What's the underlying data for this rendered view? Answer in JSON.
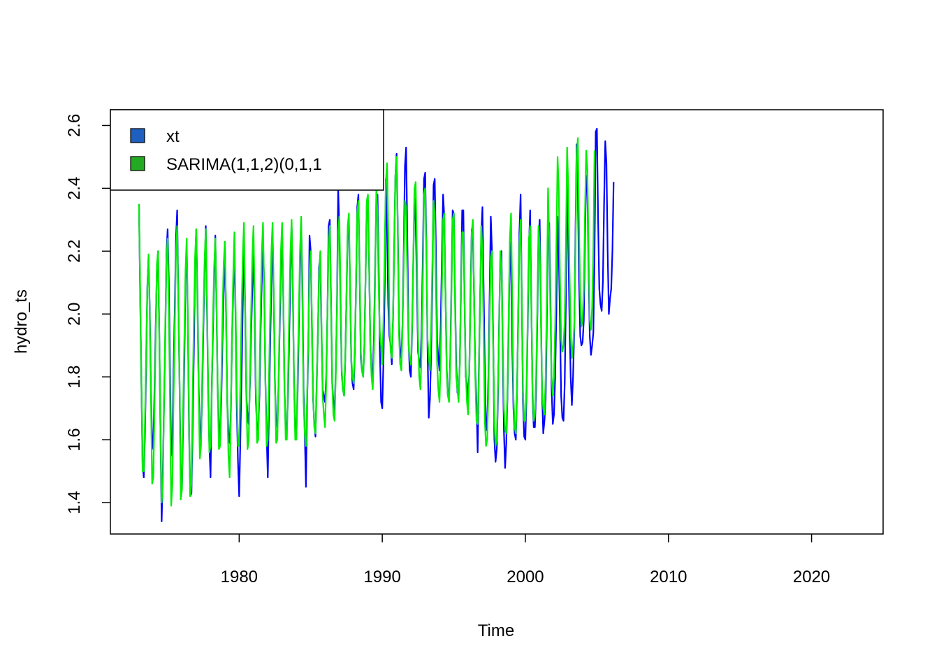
{
  "chart_data": {
    "type": "line",
    "title": "",
    "xlabel": "Time",
    "ylabel": "hydro_ts",
    "xlim": [
      1971,
      2025
    ],
    "ylim": [
      1.3,
      2.65
    ],
    "xticks": [
      1980,
      1990,
      2000,
      2010,
      2020
    ],
    "xtick_labels": [
      "1980",
      "1990",
      "2000",
      "2010",
      "2020"
    ],
    "yticks": [
      1.4,
      1.6,
      1.8,
      2.0,
      2.2,
      2.4,
      2.6
    ],
    "ytick_labels": [
      "1.4",
      "1.6",
      "1.8",
      "2.0",
      "2.2",
      "2.4",
      "2.6"
    ],
    "x_start": 1973.0,
    "frequency": 12,
    "legend": {
      "position": "top-left",
      "entries": [
        {
          "label": "xt",
          "color": "#1f5fbf"
        },
        {
          "label": "SARIMA(1,1,2)(0,1,1",
          "color": "#22aa22"
        }
      ]
    },
    "series": [
      {
        "name": "xt",
        "color": "#0000ff",
        "values": [
          2.35,
          2.05,
          1.78,
          1.52,
          1.48,
          1.62,
          1.84,
          2.09,
          2.18,
          2.02,
          1.76,
          1.6,
          1.57,
          1.76,
          1.96,
          2.14,
          2.2,
          1.94,
          1.62,
          1.34,
          1.5,
          1.72,
          1.92,
          2.19,
          2.27,
          2.1,
          1.82,
          1.55,
          1.58,
          1.83,
          2.02,
          2.24,
          2.33,
          2.05,
          1.78,
          1.48,
          1.44,
          1.64,
          1.85,
          2.11,
          2.22,
          1.96,
          1.62,
          1.42,
          1.43,
          1.64,
          1.88,
          2.15,
          2.27,
          2.06,
          1.78,
          1.63,
          1.6,
          1.75,
          1.96,
          2.14,
          2.28,
          2.02,
          1.75,
          1.58,
          1.48,
          1.76,
          1.94,
          2.11,
          2.25,
          2.02,
          1.75,
          1.65,
          1.6,
          1.72,
          1.92,
          2.06,
          2.23,
          2.0,
          1.72,
          1.62,
          1.59,
          1.68,
          1.92,
          2.07,
          2.22,
          1.98,
          1.7,
          1.53,
          1.42,
          1.6,
          1.8,
          2.02,
          2.23,
          2.02,
          1.74,
          1.68,
          1.65,
          1.77,
          1.93,
          2.08,
          2.21,
          1.99,
          1.72,
          1.64,
          1.63,
          1.74,
          1.95,
          2.11,
          2.24,
          2.08,
          1.79,
          1.62,
          1.48,
          1.7,
          1.9,
          2.1,
          2.26,
          2.05,
          1.78,
          1.65,
          1.64,
          1.77,
          1.96,
          2.14,
          2.27,
          2.05,
          1.76,
          1.64,
          1.63,
          1.75,
          1.94,
          2.13,
          2.28,
          2.08,
          1.78,
          1.64,
          1.62,
          1.75,
          1.95,
          2.14,
          2.29,
          2.1,
          1.76,
          1.62,
          1.45,
          1.72,
          1.9,
          2.25,
          2.2,
          1.96,
          1.73,
          1.65,
          1.61,
          1.78,
          1.93,
          2.15,
          2.18,
          1.95,
          1.76,
          1.74,
          1.72,
          1.8,
          2.0,
          2.28,
          2.3,
          2.05,
          1.78,
          1.72,
          1.69,
          1.82,
          2.02,
          2.4,
          2.27,
          2.04,
          1.81,
          1.76,
          1.74,
          1.86,
          2.06,
          2.26,
          2.29,
          2.09,
          1.85,
          1.78,
          1.76,
          1.88,
          2.09,
          2.34,
          2.38,
          2.13,
          1.86,
          1.82,
          1.8,
          1.9,
          2.12,
          2.35,
          2.36,
          2.15,
          1.9,
          1.82,
          1.79,
          1.93,
          2.14,
          2.36,
          2.38,
          2.15,
          1.88,
          1.72,
          1.7,
          1.85,
          2.07,
          2.43,
          2.27,
          2.03,
          1.93,
          1.9,
          1.84,
          1.98,
          2.22,
          2.44,
          2.51,
          2.28,
          1.98,
          1.88,
          1.86,
          1.97,
          2.2,
          2.47,
          2.53,
          2.25,
          1.92,
          1.82,
          1.8,
          1.95,
          2.16,
          2.37,
          2.3,
          2.1,
          1.88,
          1.85,
          1.83,
          1.95,
          2.18,
          2.43,
          2.45,
          2.21,
          1.88,
          1.67,
          1.73,
          1.88,
          2.1,
          2.41,
          2.43,
          2.2,
          1.92,
          1.86,
          1.82,
          1.96,
          2.18,
          2.38,
          2.31,
          2.07,
          1.83,
          1.74,
          1.74,
          1.86,
          2.09,
          2.33,
          2.32,
          2.07,
          1.84,
          1.75,
          1.74,
          1.84,
          2.08,
          2.33,
          2.33,
          2.04,
          1.8,
          1.78,
          1.72,
          1.82,
          2.07,
          2.27,
          2.26,
          2.05,
          1.82,
          1.72,
          1.56,
          1.82,
          2.04,
          2.25,
          2.34,
          2.08,
          1.82,
          1.63,
          1.65,
          1.8,
          2.05,
          2.31,
          2.2,
          1.93,
          1.6,
          1.53,
          1.57,
          1.73,
          1.98,
          2.18,
          2.2,
          1.88,
          1.63,
          1.51,
          1.59,
          1.74,
          1.96,
          2.23,
          2.14,
          1.9,
          1.7,
          1.62,
          1.6,
          1.75,
          2.0,
          2.26,
          2.38,
          2.05,
          1.72,
          1.61,
          1.6,
          1.75,
          1.97,
          2.22,
          2.33,
          2.04,
          1.74,
          1.64,
          1.64,
          1.76,
          1.98,
          2.24,
          2.3,
          2.02,
          1.75,
          1.62,
          1.66,
          1.73,
          1.98,
          2.25,
          2.29,
          2.06,
          1.76,
          1.65,
          1.68,
          1.8,
          2.01,
          2.31,
          2.2,
          1.98,
          1.74,
          1.67,
          1.66,
          1.78,
          2.05,
          2.46,
          2.22,
          1.98,
          1.8,
          1.71,
          1.8,
          1.95,
          2.25,
          2.54,
          2.39,
          2.12,
          1.93,
          1.9,
          1.91,
          1.98,
          2.24,
          2.44,
          2.4,
          2.15,
          1.93,
          1.87,
          1.9,
          1.94,
          2.19,
          2.58,
          2.59,
          2.3,
          2.08,
          2.03,
          2.01,
          2.1,
          2.35,
          2.55,
          2.48,
          2.2,
          2.0,
          2.05,
          2.08,
          2.2,
          2.42
        ]
      },
      {
        "name": "SARIMA(1,1,2)(0,1,1",
        "color": "#00ee00",
        "values": [
          2.35,
          2.07,
          1.8,
          1.5,
          1.5,
          1.66,
          1.88,
          2.08,
          2.19,
          2.0,
          1.74,
          1.46,
          1.48,
          1.7,
          1.93,
          2.16,
          2.2,
          1.94,
          1.62,
          1.4,
          1.46,
          1.72,
          1.96,
          2.17,
          2.24,
          2.02,
          1.72,
          1.39,
          1.46,
          1.74,
          1.96,
          2.19,
          2.28,
          2.04,
          1.78,
          1.41,
          1.44,
          1.7,
          1.92,
          2.14,
          2.24,
          1.97,
          1.65,
          1.42,
          1.46,
          1.74,
          1.98,
          2.18,
          2.27,
          2.02,
          1.76,
          1.54,
          1.58,
          1.8,
          2.0,
          2.17,
          2.27,
          2.04,
          1.78,
          1.56,
          1.58,
          1.76,
          1.98,
          2.15,
          2.24,
          2.03,
          1.76,
          1.57,
          1.58,
          1.78,
          1.99,
          2.16,
          2.23,
          2.0,
          1.72,
          1.55,
          1.48,
          1.68,
          1.93,
          2.12,
          2.26,
          2.02,
          1.76,
          1.58,
          1.58,
          1.78,
          2.0,
          2.18,
          2.29,
          2.04,
          1.74,
          1.57,
          1.6,
          1.79,
          2.0,
          2.18,
          2.28,
          2.04,
          1.76,
          1.59,
          1.6,
          1.8,
          2.02,
          2.2,
          2.29,
          2.06,
          1.78,
          1.58,
          1.6,
          1.8,
          2.0,
          2.2,
          2.29,
          2.06,
          1.78,
          1.59,
          1.6,
          1.78,
          2.0,
          2.2,
          2.29,
          2.06,
          1.78,
          1.6,
          1.6,
          1.8,
          2.02,
          2.2,
          2.3,
          2.06,
          1.78,
          1.6,
          1.6,
          1.8,
          2.0,
          2.2,
          2.31,
          2.04,
          1.72,
          1.62,
          1.58,
          1.74,
          1.93,
          2.14,
          2.2,
          1.98,
          1.74,
          1.64,
          1.62,
          1.76,
          1.95,
          2.12,
          2.2,
          1.98,
          1.74,
          1.68,
          1.64,
          1.78,
          2.0,
          2.22,
          2.28,
          2.04,
          1.78,
          1.68,
          1.66,
          1.8,
          2.02,
          2.26,
          2.31,
          2.08,
          1.82,
          1.76,
          1.74,
          1.86,
          2.06,
          2.28,
          2.32,
          2.1,
          1.86,
          1.8,
          1.78,
          1.9,
          2.1,
          2.32,
          2.36,
          2.14,
          1.88,
          1.82,
          1.8,
          1.9,
          2.12,
          2.36,
          2.38,
          2.16,
          1.9,
          1.8,
          1.76,
          1.88,
          2.1,
          2.4,
          2.32,
          2.08,
          1.94,
          1.9,
          1.84,
          1.98,
          2.2,
          2.42,
          2.48,
          2.26,
          1.98,
          1.88,
          1.86,
          1.98,
          2.2,
          2.44,
          2.5,
          2.26,
          1.94,
          1.84,
          1.82,
          1.96,
          2.16,
          2.36,
          2.34,
          2.12,
          1.9,
          1.86,
          1.84,
          1.96,
          2.18,
          2.4,
          2.42,
          2.2,
          1.92,
          1.8,
          1.76,
          1.88,
          2.1,
          2.38,
          2.4,
          2.18,
          1.92,
          1.86,
          1.82,
          1.96,
          2.16,
          2.36,
          2.32,
          2.08,
          1.84,
          1.76,
          1.72,
          1.86,
          2.08,
          2.3,
          2.32,
          2.06,
          1.82,
          1.74,
          1.72,
          1.84,
          2.06,
          2.3,
          2.32,
          2.04,
          1.8,
          1.76,
          1.72,
          1.84,
          2.06,
          2.26,
          2.26,
          2.04,
          1.82,
          1.72,
          1.68,
          1.82,
          2.04,
          2.26,
          2.3,
          2.06,
          1.8,
          1.66,
          1.65,
          1.8,
          2.04,
          2.28,
          2.2,
          1.94,
          1.66,
          1.58,
          1.6,
          1.76,
          1.98,
          2.18,
          2.2,
          1.9,
          1.66,
          1.58,
          1.6,
          1.76,
          1.96,
          2.2,
          2.16,
          1.92,
          1.7,
          1.63,
          1.62,
          1.76,
          2.0,
          2.24,
          2.32,
          2.04,
          1.74,
          1.64,
          1.62,
          1.76,
          1.98,
          2.22,
          2.3,
          2.04,
          1.76,
          1.66,
          1.66,
          1.78,
          2.0,
          2.24,
          2.28,
          2.02,
          1.76,
          1.66,
          1.68,
          1.8,
          2.02,
          2.28,
          2.22,
          1.98,
          1.76,
          1.7,
          1.68,
          1.8,
          2.04,
          2.4,
          2.24,
          2.0,
          1.8,
          1.74,
          1.8,
          1.96,
          2.22,
          2.5,
          2.4,
          2.12,
          1.92,
          1.88,
          1.9,
          1.98,
          2.22,
          2.53,
          2.4,
          2.14,
          1.94,
          1.86,
          1.9,
          1.96,
          2.2,
          2.5,
          2.56,
          2.28,
          2.06,
          1.96,
          1.98,
          2.08,
          2.32,
          2.52,
          2.46,
          2.2,
          1.98,
          1.95,
          2.02,
          2.2,
          2.52
        ]
      }
    ]
  }
}
